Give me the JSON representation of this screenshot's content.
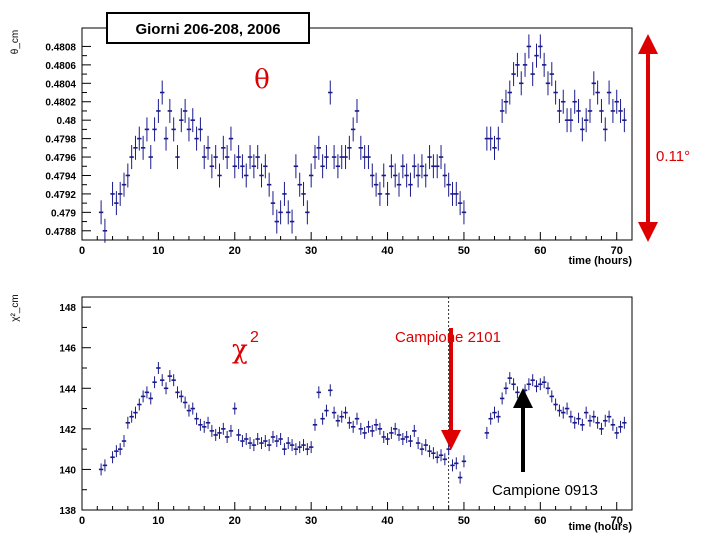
{
  "header": {
    "title": "Giorni 206-208, 2006"
  },
  "annotations": {
    "top_symbol": "θ",
    "bottom_symbol_base": "χ",
    "bottom_symbol_sup": "2",
    "range_label": "0.11°",
    "arrow_red_label": "Campione 2101",
    "arrow_black_label": "Campione 0913"
  },
  "colors": {
    "markers": "#1a1a8c",
    "red": "#dd0000",
    "black": "#000000"
  },
  "chart_data": [
    {
      "type": "scatter",
      "ylabel": "θ_cm",
      "xlabel": "time (hours)",
      "xlim": [
        0,
        72
      ],
      "ylim": [
        0.4787,
        0.481
      ],
      "x_ticks": [
        0,
        10,
        20,
        30,
        40,
        50,
        60,
        70
      ],
      "y_ticks": [
        0.4788,
        0.479,
        0.4792,
        0.4794,
        0.4796,
        0.4798,
        0.48,
        0.4802,
        0.4804,
        0.4806,
        0.4808
      ],
      "y_tick_labels": [
        "0.4788",
        "0.479",
        "0.4792",
        "0.4794",
        "0.4796",
        "0.4798",
        "0.48",
        "0.4802",
        "0.4804",
        "0.4806",
        "0.4808"
      ],
      "grid": false,
      "points": [
        [
          2.5,
          0.479
        ],
        [
          3,
          0.4788
        ],
        [
          4,
          0.4792
        ],
        [
          4.5,
          0.4791
        ],
        [
          5,
          0.4792
        ],
        [
          5.5,
          0.4793
        ],
        [
          6,
          0.4794
        ],
        [
          6.5,
          0.4796
        ],
        [
          7,
          0.4797
        ],
        [
          7.5,
          0.4798
        ],
        [
          8,
          0.4797
        ],
        [
          8.5,
          0.4799
        ],
        [
          9,
          0.4796
        ],
        [
          9.5,
          0.4799
        ],
        [
          10,
          0.4801
        ],
        [
          10.5,
          0.4803
        ],
        [
          11,
          0.4798
        ],
        [
          11.5,
          0.4801
        ],
        [
          12,
          0.4799
        ],
        [
          12.5,
          0.4796
        ],
        [
          13,
          0.48
        ],
        [
          13.5,
          0.4801
        ],
        [
          14,
          0.4799
        ],
        [
          14.5,
          0.48
        ],
        [
          15,
          0.4798
        ],
        [
          15.5,
          0.4799
        ],
        [
          16,
          0.4796
        ],
        [
          16.5,
          0.4797
        ],
        [
          17,
          0.4795
        ],
        [
          17.5,
          0.4796
        ],
        [
          18,
          0.4794
        ],
        [
          18.5,
          0.4797
        ],
        [
          19,
          0.4796
        ],
        [
          19.5,
          0.4798
        ],
        [
          20,
          0.4795
        ],
        [
          20.5,
          0.4796
        ],
        [
          21,
          0.4795
        ],
        [
          21.5,
          0.4794
        ],
        [
          22,
          0.4796
        ],
        [
          22.5,
          0.4795
        ],
        [
          23,
          0.4796
        ],
        [
          23.5,
          0.4794
        ],
        [
          24,
          0.4795
        ],
        [
          24.5,
          0.4793
        ],
        [
          25,
          0.4791
        ],
        [
          25.5,
          0.4789
        ],
        [
          26,
          0.479
        ],
        [
          26.5,
          0.4792
        ],
        [
          27,
          0.479
        ],
        [
          27.5,
          0.4789
        ],
        [
          28,
          0.4795
        ],
        [
          28.5,
          0.4793
        ],
        [
          29,
          0.4792
        ],
        [
          29.5,
          0.479
        ],
        [
          30,
          0.4794
        ],
        [
          30.5,
          0.4796
        ],
        [
          31,
          0.4797
        ],
        [
          31.5,
          0.4795
        ],
        [
          32,
          0.4796
        ],
        [
          32.5,
          0.4803
        ],
        [
          33,
          0.4796
        ],
        [
          33.5,
          0.4795
        ],
        [
          34,
          0.4796
        ],
        [
          34.5,
          0.4796
        ],
        [
          35,
          0.4797
        ],
        [
          35.5,
          0.4799
        ],
        [
          36,
          0.4801
        ],
        [
          36.5,
          0.4797
        ],
        [
          37,
          0.4796
        ],
        [
          37.5,
          0.4796
        ],
        [
          38,
          0.4794
        ],
        [
          38.5,
          0.4793
        ],
        [
          39,
          0.4792
        ],
        [
          39.5,
          0.4794
        ],
        [
          40,
          0.4792
        ],
        [
          40.5,
          0.4795
        ],
        [
          41,
          0.4794
        ],
        [
          41.5,
          0.4793
        ],
        [
          42,
          0.4795
        ],
        [
          42.5,
          0.4794
        ],
        [
          43,
          0.4793
        ],
        [
          43.5,
          0.4795
        ],
        [
          44,
          0.4794
        ],
        [
          44.5,
          0.4795
        ],
        [
          45,
          0.4794
        ],
        [
          45.5,
          0.4796
        ],
        [
          46,
          0.4795
        ],
        [
          46.5,
          0.4795
        ],
        [
          47,
          0.4796
        ],
        [
          47.5,
          0.4794
        ],
        [
          48,
          0.4793
        ],
        [
          48.5,
          0.4792
        ],
        [
          49,
          0.4792
        ],
        [
          49.5,
          0.4791
        ],
        [
          50,
          0.479
        ],
        [
          53,
          0.4798
        ],
        [
          53.5,
          0.4798
        ],
        [
          54,
          0.4797
        ],
        [
          54.5,
          0.4798
        ],
        [
          55,
          0.4801
        ],
        [
          55.5,
          0.4802
        ],
        [
          56,
          0.4803
        ],
        [
          56.5,
          0.4805
        ],
        [
          57,
          0.4806
        ],
        [
          57.5,
          0.4804
        ],
        [
          58,
          0.4806
        ],
        [
          58.5,
          0.4808
        ],
        [
          59,
          0.4805
        ],
        [
          59.5,
          0.4807
        ],
        [
          60,
          0.4808
        ],
        [
          60.5,
          0.4806
        ],
        [
          61,
          0.4804
        ],
        [
          61.5,
          0.4805
        ],
        [
          62,
          0.4803
        ],
        [
          62.5,
          0.4801
        ],
        [
          63,
          0.4802
        ],
        [
          63.5,
          0.48
        ],
        [
          64,
          0.48
        ],
        [
          64.5,
          0.4802
        ],
        [
          65,
          0.4801
        ],
        [
          65.5,
          0.4799
        ],
        [
          66,
          0.48
        ],
        [
          66.5,
          0.4801
        ],
        [
          67,
          0.4804
        ],
        [
          67.5,
          0.4803
        ],
        [
          68,
          0.4801
        ],
        [
          68.5,
          0.4799
        ],
        [
          69,
          0.4803
        ],
        [
          69.5,
          0.4801
        ],
        [
          70,
          0.4802
        ],
        [
          70.5,
          0.4801
        ],
        [
          71,
          0.48
        ]
      ]
    },
    {
      "type": "scatter",
      "ylabel": "χ²_cm",
      "xlabel": "time (hours)",
      "xlim": [
        0,
        72
      ],
      "ylim": [
        138,
        148.5
      ],
      "x_ticks": [
        0,
        10,
        20,
        30,
        40,
        50,
        60,
        70
      ],
      "y_ticks": [
        138,
        140,
        142,
        144,
        146,
        148
      ],
      "y_tick_labels": [
        "138",
        "140",
        "142",
        "144",
        "146",
        "148"
      ],
      "grid": false,
      "vertical_marker_x": 48,
      "points": [
        [
          2.5,
          140.0
        ],
        [
          3,
          140.2
        ],
        [
          4,
          140.6
        ],
        [
          4.5,
          140.9
        ],
        [
          5,
          141.0
        ],
        [
          5.5,
          141.4
        ],
        [
          6,
          142.3
        ],
        [
          6.5,
          142.6
        ],
        [
          7,
          142.8
        ],
        [
          7.5,
          143.2
        ],
        [
          8,
          143.6
        ],
        [
          8.5,
          143.8
        ],
        [
          9,
          143.5
        ],
        [
          9.5,
          144.3
        ],
        [
          10,
          145.0
        ],
        [
          10.5,
          144.4
        ],
        [
          11,
          144.0
        ],
        [
          11.5,
          144.6
        ],
        [
          12,
          144.4
        ],
        [
          12.5,
          143.8
        ],
        [
          13,
          143.6
        ],
        [
          13.5,
          143.3
        ],
        [
          14,
          142.9
        ],
        [
          14.5,
          143.0
        ],
        [
          15,
          142.5
        ],
        [
          15.5,
          142.2
        ],
        [
          16,
          142.1
        ],
        [
          16.5,
          142.3
        ],
        [
          17,
          141.9
        ],
        [
          17.5,
          141.7
        ],
        [
          18,
          141.8
        ],
        [
          18.5,
          142.0
        ],
        [
          19,
          141.6
        ],
        [
          19.5,
          141.9
        ],
        [
          20,
          143.0
        ],
        [
          20.5,
          141.7
        ],
        [
          21,
          141.4
        ],
        [
          21.5,
          141.5
        ],
        [
          22,
          141.3
        ],
        [
          22.5,
          141.2
        ],
        [
          23,
          141.5
        ],
        [
          23.5,
          141.3
        ],
        [
          24,
          141.4
        ],
        [
          24.5,
          141.2
        ],
        [
          25,
          141.6
        ],
        [
          25.5,
          141.4
        ],
        [
          26,
          141.5
        ],
        [
          26.5,
          141.0
        ],
        [
          27,
          141.3
        ],
        [
          27.5,
          141.2
        ],
        [
          28,
          141.0
        ],
        [
          28.5,
          141.1
        ],
        [
          29,
          141.2
        ],
        [
          29.5,
          141.0
        ],
        [
          30,
          141.1
        ],
        [
          30.5,
          142.2
        ],
        [
          31,
          143.8
        ],
        [
          31.5,
          142.5
        ],
        [
          32,
          142.9
        ],
        [
          32.5,
          143.9
        ],
        [
          33,
          142.8
        ],
        [
          33.5,
          142.4
        ],
        [
          34,
          142.6
        ],
        [
          34.5,
          142.8
        ],
        [
          35,
          142.3
        ],
        [
          35.5,
          142.1
        ],
        [
          36,
          142.5
        ],
        [
          36.5,
          142.0
        ],
        [
          37,
          141.8
        ],
        [
          37.5,
          142.1
        ],
        [
          38,
          141.9
        ],
        [
          38.5,
          142.2
        ],
        [
          39,
          142.0
        ],
        [
          39.5,
          141.6
        ],
        [
          40,
          141.5
        ],
        [
          40.5,
          141.8
        ],
        [
          41,
          142.0
        ],
        [
          41.5,
          141.7
        ],
        [
          42,
          141.5
        ],
        [
          42.5,
          141.6
        ],
        [
          43,
          141.4
        ],
        [
          43.5,
          141.9
        ],
        [
          44,
          141.3
        ],
        [
          44.5,
          141.0
        ],
        [
          45,
          141.2
        ],
        [
          45.5,
          140.9
        ],
        [
          46,
          140.8
        ],
        [
          46.5,
          140.6
        ],
        [
          47,
          140.7
        ],
        [
          47.5,
          140.5
        ],
        [
          48,
          141.0
        ],
        [
          48.5,
          140.2
        ],
        [
          49,
          140.3
        ],
        [
          49.5,
          139.6
        ],
        [
          50,
          140.4
        ],
        [
          53,
          141.8
        ],
        [
          53.5,
          142.5
        ],
        [
          54,
          142.8
        ],
        [
          54.5,
          142.6
        ],
        [
          55,
          143.5
        ],
        [
          55.5,
          144.0
        ],
        [
          56,
          144.5
        ],
        [
          56.5,
          144.2
        ],
        [
          57,
          143.8
        ],
        [
          57.5,
          143.4
        ],
        [
          58,
          143.9
        ],
        [
          58.5,
          144.2
        ],
        [
          59,
          144.4
        ],
        [
          59.5,
          144.1
        ],
        [
          60,
          144.2
        ],
        [
          60.5,
          144.3
        ],
        [
          61,
          144.0
        ],
        [
          61.5,
          143.6
        ],
        [
          62,
          143.2
        ],
        [
          62.5,
          142.9
        ],
        [
          63,
          142.8
        ],
        [
          63.5,
          143.0
        ],
        [
          64,
          142.6
        ],
        [
          64.5,
          142.3
        ],
        [
          65,
          142.5
        ],
        [
          65.5,
          142.2
        ],
        [
          66,
          142.8
        ],
        [
          66.5,
          142.4
        ],
        [
          67,
          142.6
        ],
        [
          67.5,
          142.3
        ],
        [
          68,
          142.0
        ],
        [
          68.5,
          142.4
        ],
        [
          69,
          142.6
        ],
        [
          69.5,
          142.2
        ],
        [
          70,
          141.8
        ],
        [
          70.5,
          142.1
        ],
        [
          71,
          142.3
        ]
      ]
    }
  ]
}
